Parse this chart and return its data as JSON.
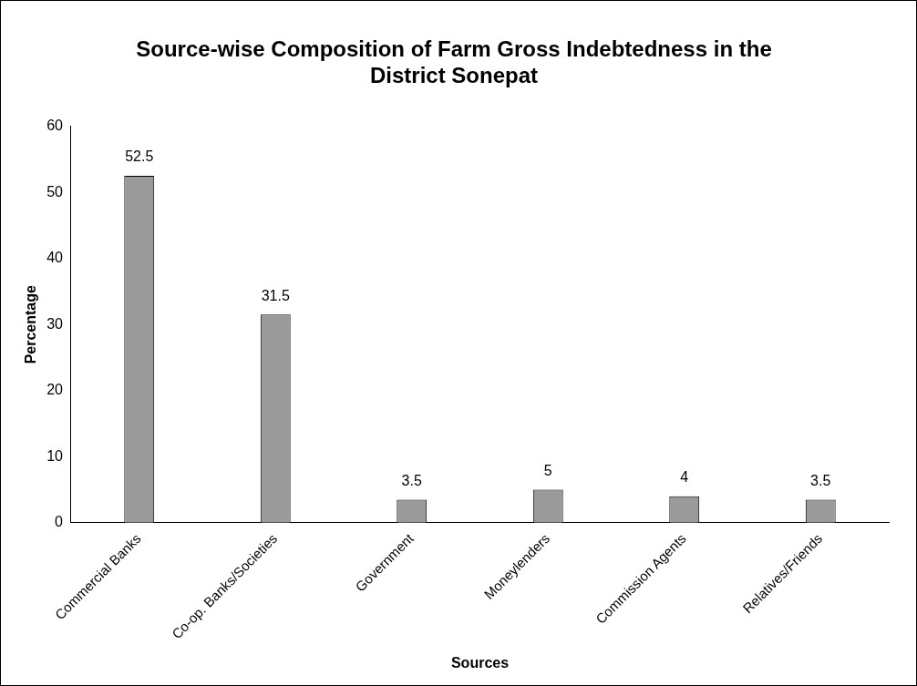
{
  "chart_data": {
    "type": "bar",
    "title": "Source-wise Composition of Farm Gross Indebtedness in the District Sonepat",
    "xlabel": "Sources",
    "ylabel": "Percentage",
    "categories": [
      "Commercial Banks",
      "Co-op. Banks/Societies",
      "Government",
      "Moneylenders",
      "Commission Agents",
      "Relatives/Friends"
    ],
    "values": [
      52.5,
      31.5,
      3.5,
      5,
      4,
      3.5
    ],
    "color": "#9a9a9a",
    "ylim": [
      0,
      60
    ],
    "yticks": [
      0,
      10,
      20,
      30,
      40,
      50,
      60
    ],
    "grid": false,
    "legend": false,
    "data_labels": true
  }
}
